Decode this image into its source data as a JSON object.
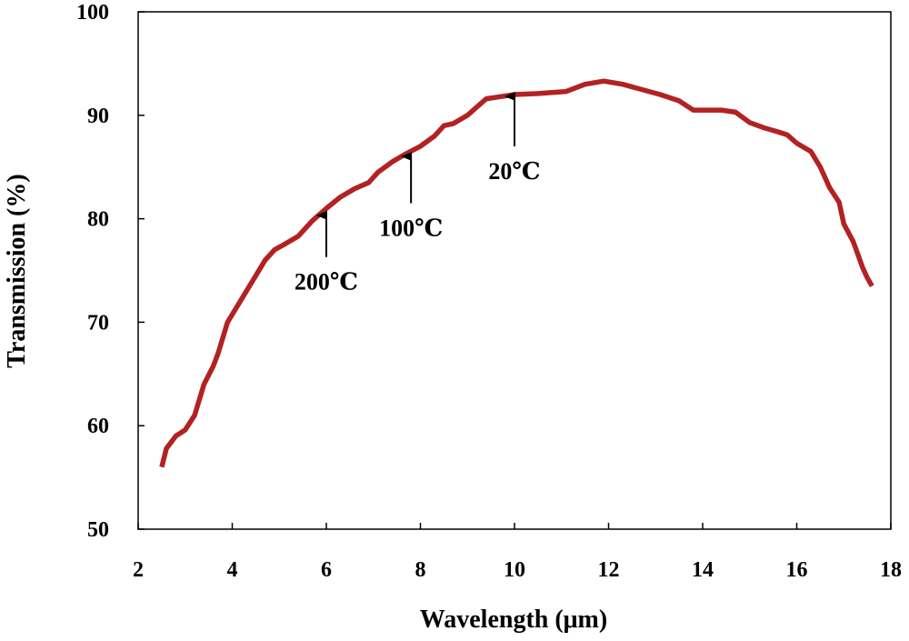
{
  "chart_data": {
    "type": "line",
    "title": "",
    "xlabel": "Wavelength (μm)",
    "ylabel": "Transmission (%)",
    "xlim": [
      2,
      18
    ],
    "ylim": [
      50,
      100
    ],
    "xticks": [
      2,
      4,
      6,
      8,
      10,
      12,
      14,
      16,
      18
    ],
    "yticks": [
      50,
      60,
      70,
      80,
      90,
      100
    ],
    "xtick_labels": [
      "2",
      "4",
      "6",
      "8",
      "10",
      "12",
      "14",
      "16",
      "18"
    ],
    "ytick_labels": [
      "50",
      "60",
      "70",
      "80",
      "90",
      "100"
    ],
    "grid": false,
    "series": [
      {
        "name": "Transmission",
        "color": "#b22222",
        "x": [
          2.5,
          2.6,
          2.8,
          3.0,
          3.2,
          3.4,
          3.6,
          3.7,
          3.9,
          4.1,
          4.3,
          4.5,
          4.7,
          4.9,
          5.1,
          5.4,
          5.7,
          6.0,
          6.3,
          6.6,
          6.9,
          7.1,
          7.4,
          7.7,
          8.0,
          8.3,
          8.5,
          8.7,
          9.0,
          9.2,
          9.4,
          9.7,
          10.0,
          10.5,
          11.1,
          11.5,
          11.9,
          12.3,
          12.7,
          13.1,
          13.5,
          13.8,
          14.1,
          14.4,
          14.7,
          15.0,
          15.3,
          15.6,
          15.8,
          16.0,
          16.3,
          16.5,
          16.7,
          16.9,
          17.0,
          17.2,
          17.4,
          17.5,
          17.6
        ],
        "values": [
          56.0,
          57.8,
          59.0,
          59.6,
          61.0,
          64.0,
          65.8,
          67.0,
          70.0,
          71.5,
          73.0,
          74.5,
          76.0,
          77.0,
          77.5,
          78.3,
          79.8,
          81.0,
          82.1,
          82.9,
          83.5,
          84.5,
          85.5,
          86.3,
          87.0,
          88.0,
          89.0,
          89.2,
          90.0,
          90.8,
          91.6,
          91.8,
          92.0,
          92.1,
          92.3,
          93.0,
          93.3,
          93.0,
          92.5,
          92.0,
          91.4,
          90.5,
          90.5,
          90.5,
          90.3,
          89.3,
          88.8,
          88.4,
          88.1,
          87.3,
          86.5,
          85.0,
          83.0,
          81.6,
          79.5,
          77.8,
          75.3,
          74.3,
          73.5
        ]
      }
    ],
    "annotations": [
      {
        "label": "200℃",
        "x": 6.0,
        "arrow_tip_y": 80.5,
        "arrow_base_y": 76.3
      },
      {
        "label": "100℃",
        "x": 7.8,
        "arrow_tip_y": 86.2,
        "arrow_base_y": 81.5
      },
      {
        "label": "20℃",
        "x": 10.0,
        "arrow_tip_y": 92.0,
        "arrow_base_y": 87.0
      }
    ]
  }
}
